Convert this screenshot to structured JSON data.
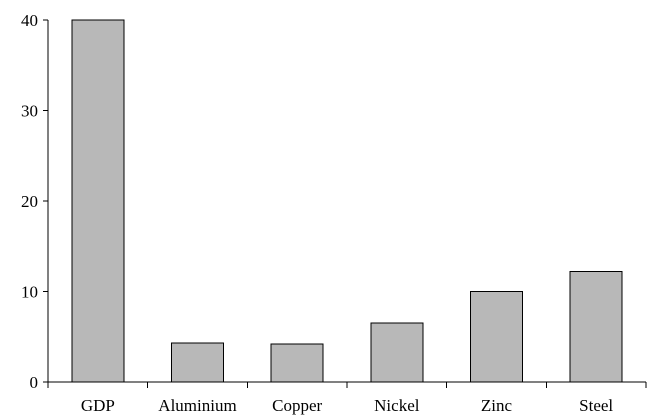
{
  "chart_data": {
    "type": "bar",
    "title": "",
    "xlabel": "",
    "ylabel": "",
    "categories": [
      "GDP",
      "Aluminium",
      "Copper",
      "Nickel",
      "Zinc",
      "Steel"
    ],
    "values": [
      40,
      4.3,
      4.2,
      6.5,
      10,
      12.2
    ],
    "ylim": [
      0,
      40
    ],
    "yticks": [
      0,
      10,
      20,
      30,
      40
    ],
    "ytick_labels": [
      "0",
      "10",
      "20",
      "30",
      "40"
    ],
    "grid": false,
    "legend": "none",
    "bar_color": "#b8b8b8",
    "edge_color": "#000000"
  }
}
